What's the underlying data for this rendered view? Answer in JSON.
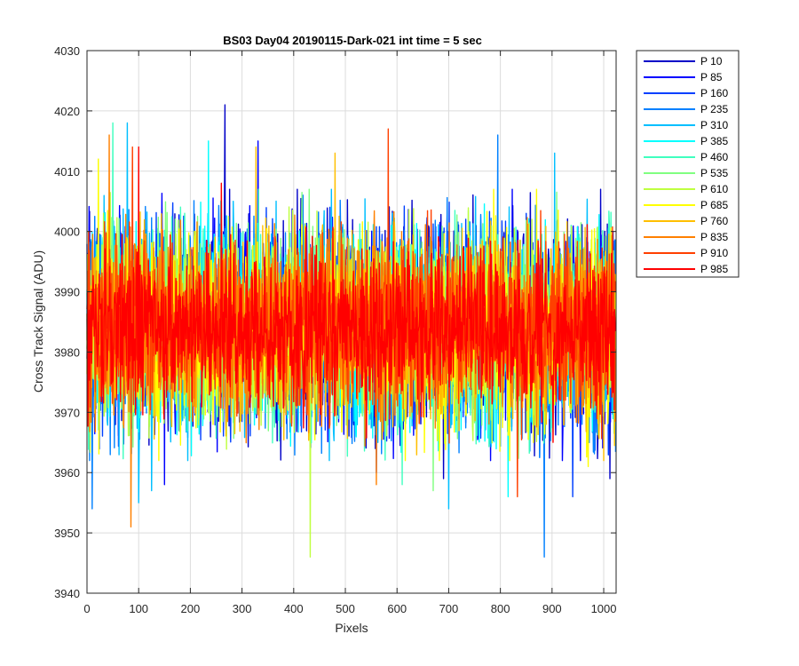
{
  "chart_data": {
    "type": "line",
    "title": "BS03 Day04 20190115-Dark-021 int time = 5 sec",
    "xlabel": "Pixels",
    "ylabel": "Cross Track Signal (ADU)",
    "xlim": [
      0,
      1024
    ],
    "ylim": [
      3940,
      4030
    ],
    "xticks": [
      0,
      100,
      200,
      300,
      400,
      500,
      600,
      700,
      800,
      900,
      1000
    ],
    "yticks": [
      3940,
      3950,
      3960,
      3970,
      3980,
      3990,
      4000,
      4010,
      4020,
      4030
    ],
    "grid": true,
    "legend_position": "outside-top-right",
    "points_per_series": 1024,
    "series": [
      {
        "name": "P 10",
        "color": "#0000c8",
        "mean": 3984,
        "noise": 9.0,
        "spikes": [
          [
            267,
            4021
          ],
          [
            690,
            3959
          ],
          [
            1012,
            3959
          ]
        ]
      },
      {
        "name": "P 85",
        "color": "#0000ff",
        "mean": 3984,
        "noise": 9.0,
        "spikes": [
          [
            331,
            4015
          ],
          [
            150,
            3958
          ],
          [
            560,
            3960
          ]
        ]
      },
      {
        "name": "P 160",
        "color": "#0040ff",
        "mean": 3984,
        "noise": 8.5,
        "spikes": [
          [
            850,
            4003
          ],
          [
            940,
            3956
          ]
        ]
      },
      {
        "name": "P 235",
        "color": "#0080ff",
        "mean": 3984,
        "noise": 8.5,
        "spikes": [
          [
            10,
            3954
          ],
          [
            885,
            3946
          ],
          [
            795,
            4016
          ]
        ]
      },
      {
        "name": "P 310",
        "color": "#00bfff",
        "mean": 3984,
        "noise": 8.5,
        "spikes": [
          [
            78,
            4018
          ],
          [
            100,
            3955
          ],
          [
            700,
            3954
          ],
          [
            905,
            4013
          ],
          [
            125,
            3957
          ]
        ]
      },
      {
        "name": "P 385",
        "color": "#00ffff",
        "mean": 3984,
        "noise": 8.0,
        "spikes": [
          [
            235,
            4015
          ],
          [
            815,
            3956
          ]
        ]
      },
      {
        "name": "P 460",
        "color": "#40ffbf",
        "mean": 3984,
        "noise": 8.0,
        "spikes": [
          [
            50,
            4018
          ],
          [
            610,
            3958
          ]
        ]
      },
      {
        "name": "P 535",
        "color": "#80ff80",
        "mean": 3984,
        "noise": 8.0,
        "spikes": [
          [
            430,
            4007
          ],
          [
            670,
            3957
          ]
        ]
      },
      {
        "name": "P 610",
        "color": "#bfff40",
        "mean": 3984,
        "noise": 8.0,
        "spikes": [
          [
            432,
            3946
          ],
          [
            22,
            4012
          ]
        ]
      },
      {
        "name": "P 685",
        "color": "#ffff00",
        "mean": 3984,
        "noise": 8.0,
        "spikes": [
          [
            22,
            4012
          ],
          [
            970,
            3961
          ]
        ]
      },
      {
        "name": "P 760",
        "color": "#ffbf00",
        "mean": 3984,
        "noise": 7.5,
        "spikes": [
          [
            327,
            4014
          ],
          [
            480,
            4013
          ]
        ]
      },
      {
        "name": "P 835",
        "color": "#ff8000",
        "mean": 3984,
        "noise": 7.5,
        "spikes": [
          [
            85,
            3951
          ],
          [
            43,
            4016
          ],
          [
            560,
            3958
          ]
        ]
      },
      {
        "name": "P 910",
        "color": "#ff4000",
        "mean": 3984,
        "noise": 7.0,
        "spikes": [
          [
            583,
            4017
          ],
          [
            833,
            3956
          ],
          [
            88,
            4014
          ]
        ]
      },
      {
        "name": "P 985",
        "color": "#ff0000",
        "mean": 3984,
        "noise": 6.5,
        "spikes": [
          [
            100,
            4014
          ],
          [
            260,
            4008
          ]
        ]
      }
    ]
  }
}
